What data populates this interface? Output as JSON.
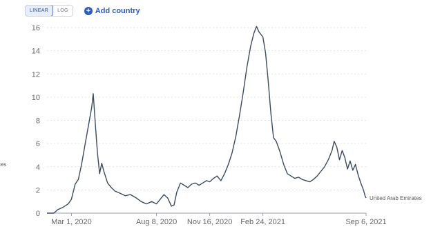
{
  "controls": {
    "linear_label": "LINEAR",
    "log_label": "LOG",
    "add_country_label": "Add country"
  },
  "cut_label": "ates",
  "chart_data": {
    "type": "line",
    "title": "",
    "xlabel": "",
    "ylabel": "",
    "x_ticks": [
      "Mar 1, 2020",
      "Aug 8, 2020",
      "Nov 16, 2020",
      "Feb 24, 2021",
      "Sep 6, 2021"
    ],
    "y_ticks": [
      0,
      2,
      4,
      6,
      8,
      10,
      12,
      14,
      16
    ],
    "ylim": [
      0,
      16
    ],
    "xlim": [
      "2020-01-15",
      "2021-09-06"
    ],
    "grid": "horizontal-dotted",
    "series": [
      {
        "name": "United Arab Emirates",
        "color": "#3c4a5e",
        "points": [
          [
            "2020-01-15",
            0
          ],
          [
            "2020-01-28",
            0
          ],
          [
            "2020-02-04",
            0.3
          ],
          [
            "2020-02-14",
            0.5
          ],
          [
            "2020-02-24",
            0.8
          ],
          [
            "2020-03-01",
            1.2
          ],
          [
            "2020-03-08",
            2.5
          ],
          [
            "2020-03-14",
            2.9
          ],
          [
            "2020-03-20",
            4.2
          ],
          [
            "2020-03-27",
            6.0
          ],
          [
            "2020-04-03",
            7.8
          ],
          [
            "2020-04-08",
            9.1
          ],
          [
            "2020-04-11",
            10.3
          ],
          [
            "2020-04-15",
            7.6
          ],
          [
            "2020-04-19",
            5.2
          ],
          [
            "2020-04-23",
            3.4
          ],
          [
            "2020-04-27",
            4.3
          ],
          [
            "2020-05-01",
            3.6
          ],
          [
            "2020-05-08",
            2.6
          ],
          [
            "2020-05-15",
            2.2
          ],
          [
            "2020-05-22",
            1.9
          ],
          [
            "2020-06-01",
            1.7
          ],
          [
            "2020-06-10",
            1.5
          ],
          [
            "2020-06-20",
            1.6
          ],
          [
            "2020-07-01",
            1.3
          ],
          [
            "2020-07-10",
            1.0
          ],
          [
            "2020-07-20",
            0.8
          ],
          [
            "2020-07-30",
            1.0
          ],
          [
            "2020-08-08",
            0.8
          ],
          [
            "2020-08-15",
            1.2
          ],
          [
            "2020-08-22",
            1.6
          ],
          [
            "2020-08-29",
            1.3
          ],
          [
            "2020-09-05",
            0.6
          ],
          [
            "2020-09-10",
            0.7
          ],
          [
            "2020-09-15",
            1.8
          ],
          [
            "2020-09-22",
            2.6
          ],
          [
            "2020-09-29",
            2.4
          ],
          [
            "2020-10-06",
            2.2
          ],
          [
            "2020-10-13",
            2.5
          ],
          [
            "2020-10-20",
            2.6
          ],
          [
            "2020-10-27",
            2.4
          ],
          [
            "2020-11-03",
            2.6
          ],
          [
            "2020-11-10",
            2.8
          ],
          [
            "2020-11-16",
            2.7
          ],
          [
            "2020-11-23",
            3.0
          ],
          [
            "2020-11-30",
            3.2
          ],
          [
            "2020-12-07",
            2.8
          ],
          [
            "2020-12-14",
            3.4
          ],
          [
            "2020-12-21",
            4.2
          ],
          [
            "2020-12-28",
            5.2
          ],
          [
            "2021-01-04",
            6.6
          ],
          [
            "2021-01-11",
            8.4
          ],
          [
            "2021-01-18",
            10.4
          ],
          [
            "2021-01-25",
            12.6
          ],
          [
            "2021-02-01",
            14.4
          ],
          [
            "2021-02-07",
            15.5
          ],
          [
            "2021-02-12",
            16.1
          ],
          [
            "2021-02-17",
            15.6
          ],
          [
            "2021-02-24",
            15.2
          ],
          [
            "2021-03-01",
            13.8
          ],
          [
            "2021-03-06",
            11.4
          ],
          [
            "2021-03-11",
            8.6
          ],
          [
            "2021-03-16",
            6.5
          ],
          [
            "2021-03-21",
            6.2
          ],
          [
            "2021-03-28",
            5.3
          ],
          [
            "2021-04-04",
            4.2
          ],
          [
            "2021-04-11",
            3.4
          ],
          [
            "2021-04-18",
            3.2
          ],
          [
            "2021-04-25",
            3.0
          ],
          [
            "2021-05-02",
            3.1
          ],
          [
            "2021-05-09",
            2.9
          ],
          [
            "2021-05-16",
            2.8
          ],
          [
            "2021-05-23",
            2.7
          ],
          [
            "2021-05-30",
            2.9
          ],
          [
            "2021-06-06",
            3.2
          ],
          [
            "2021-06-13",
            3.6
          ],
          [
            "2021-06-20",
            4.0
          ],
          [
            "2021-06-27",
            4.6
          ],
          [
            "2021-07-04",
            5.4
          ],
          [
            "2021-07-08",
            6.2
          ],
          [
            "2021-07-13",
            5.7
          ],
          [
            "2021-07-18",
            4.6
          ],
          [
            "2021-07-23",
            5.4
          ],
          [
            "2021-07-28",
            4.8
          ],
          [
            "2021-08-02",
            3.8
          ],
          [
            "2021-08-07",
            4.5
          ],
          [
            "2021-08-12",
            3.7
          ],
          [
            "2021-08-17",
            4.2
          ],
          [
            "2021-08-22",
            3.3
          ],
          [
            "2021-08-27",
            2.6
          ],
          [
            "2021-09-01",
            2.0
          ],
          [
            "2021-09-04",
            1.5
          ],
          [
            "2021-09-06",
            1.3
          ]
        ]
      }
    ]
  }
}
